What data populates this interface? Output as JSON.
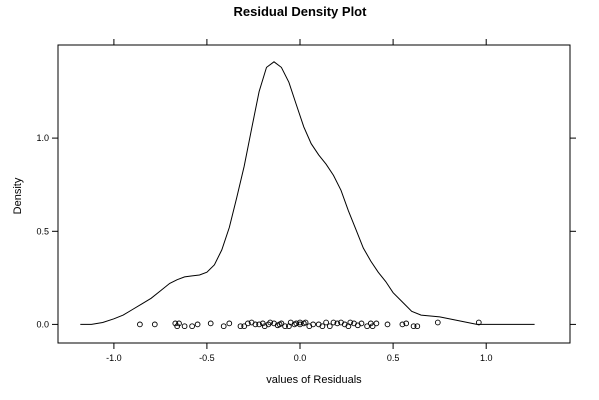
{
  "chart_data": {
    "type": "line",
    "title": "Residual Density Plot",
    "xlabel": "values of Residuals",
    "ylabel": "Density",
    "xlim": [
      -1.3,
      1.45
    ],
    "ylim": [
      -0.1,
      1.5
    ],
    "x_ticks": [
      -1.0,
      -0.5,
      0.0,
      0.5,
      1.0
    ],
    "x_tick_labels": [
      "-1.0",
      "-0.5",
      "0.0",
      "0.5",
      "1.0"
    ],
    "y_ticks": [
      0.0,
      0.5,
      1.0
    ],
    "y_tick_labels": [
      "0.0",
      "0.5",
      "1.0"
    ],
    "grid": false,
    "series": [
      {
        "x": [
          -1.18,
          -1.12,
          -1.06,
          -1.0,
          -0.95,
          -0.9,
          -0.85,
          -0.8,
          -0.75,
          -0.7,
          -0.66,
          -0.62,
          -0.58,
          -0.54,
          -0.5,
          -0.46,
          -0.42,
          -0.38,
          -0.34,
          -0.3,
          -0.26,
          -0.22,
          -0.18,
          -0.14,
          -0.1,
          -0.06,
          -0.02,
          0.02,
          0.06,
          0.1,
          0.14,
          0.18,
          0.22,
          0.26,
          0.3,
          0.34,
          0.38,
          0.42,
          0.46,
          0.5,
          0.55,
          0.6,
          0.65,
          0.7,
          0.75,
          0.8,
          0.85,
          0.9,
          0.95,
          1.0,
          1.05,
          1.1,
          1.15,
          1.2,
          1.26
        ],
        "values": [
          0.0,
          0.0,
          0.01,
          0.03,
          0.05,
          0.08,
          0.11,
          0.14,
          0.18,
          0.22,
          0.24,
          0.255,
          0.26,
          0.265,
          0.28,
          0.32,
          0.4,
          0.52,
          0.68,
          0.85,
          1.05,
          1.25,
          1.38,
          1.41,
          1.38,
          1.3,
          1.18,
          1.06,
          0.97,
          0.91,
          0.86,
          0.8,
          0.72,
          0.61,
          0.51,
          0.41,
          0.34,
          0.28,
          0.23,
          0.17,
          0.12,
          0.07,
          0.05,
          0.045,
          0.04,
          0.03,
          0.02,
          0.01,
          0.0,
          0.0,
          0.0,
          0.0,
          0.0,
          0.0,
          0.0
        ]
      }
    ],
    "rug_points": [
      {
        "x": -0.86,
        "y": 0.0
      },
      {
        "x": -0.78,
        "y": 0.0
      },
      {
        "x": -0.67,
        "y": 0.005
      },
      {
        "x": -0.66,
        "y": -0.01
      },
      {
        "x": -0.65,
        "y": 0.005
      },
      {
        "x": -0.62,
        "y": -0.01
      },
      {
        "x": -0.58,
        "y": -0.01
      },
      {
        "x": -0.55,
        "y": 0.0
      },
      {
        "x": -0.48,
        "y": 0.005
      },
      {
        "x": -0.41,
        "y": -0.01
      },
      {
        "x": -0.38,
        "y": 0.005
      },
      {
        "x": -0.32,
        "y": -0.01
      },
      {
        "x": -0.3,
        "y": -0.01
      },
      {
        "x": -0.28,
        "y": 0.005
      },
      {
        "x": -0.26,
        "y": 0.01
      },
      {
        "x": -0.24,
        "y": 0.0
      },
      {
        "x": -0.22,
        "y": 0.0
      },
      {
        "x": -0.2,
        "y": 0.005
      },
      {
        "x": -0.19,
        "y": -0.01
      },
      {
        "x": -0.17,
        "y": 0.0
      },
      {
        "x": -0.16,
        "y": 0.01
      },
      {
        "x": -0.14,
        "y": 0.005
      },
      {
        "x": -0.12,
        "y": -0.005
      },
      {
        "x": -0.11,
        "y": 0.0
      },
      {
        "x": -0.1,
        "y": 0.005
      },
      {
        "x": -0.08,
        "y": -0.01
      },
      {
        "x": -0.06,
        "y": -0.01
      },
      {
        "x": -0.05,
        "y": 0.01
      },
      {
        "x": -0.03,
        "y": 0.0
      },
      {
        "x": -0.02,
        "y": 0.005
      },
      {
        "x": 0.0,
        "y": 0.01
      },
      {
        "x": 0.0,
        "y": 0.0
      },
      {
        "x": 0.02,
        "y": 0.005
      },
      {
        "x": 0.03,
        "y": 0.01
      },
      {
        "x": 0.05,
        "y": -0.01
      },
      {
        "x": 0.07,
        "y": 0.0
      },
      {
        "x": 0.1,
        "y": 0.0
      },
      {
        "x": 0.12,
        "y": -0.01
      },
      {
        "x": 0.14,
        "y": 0.01
      },
      {
        "x": 0.16,
        "y": -0.01
      },
      {
        "x": 0.18,
        "y": 0.01
      },
      {
        "x": 0.2,
        "y": 0.005
      },
      {
        "x": 0.22,
        "y": 0.01
      },
      {
        "x": 0.24,
        "y": 0.0
      },
      {
        "x": 0.26,
        "y": -0.01
      },
      {
        "x": 0.27,
        "y": 0.01
      },
      {
        "x": 0.29,
        "y": 0.005
      },
      {
        "x": 0.31,
        "y": -0.005
      },
      {
        "x": 0.33,
        "y": 0.005
      },
      {
        "x": 0.36,
        "y": -0.01
      },
      {
        "x": 0.38,
        "y": 0.005
      },
      {
        "x": 0.39,
        "y": -0.01
      },
      {
        "x": 0.41,
        "y": 0.005
      },
      {
        "x": 0.47,
        "y": 0.0
      },
      {
        "x": 0.55,
        "y": 0.0
      },
      {
        "x": 0.57,
        "y": 0.005
      },
      {
        "x": 0.61,
        "y": -0.01
      },
      {
        "x": 0.63,
        "y": -0.01
      },
      {
        "x": 0.74,
        "y": 0.01
      },
      {
        "x": 0.96,
        "y": 0.01
      }
    ]
  }
}
